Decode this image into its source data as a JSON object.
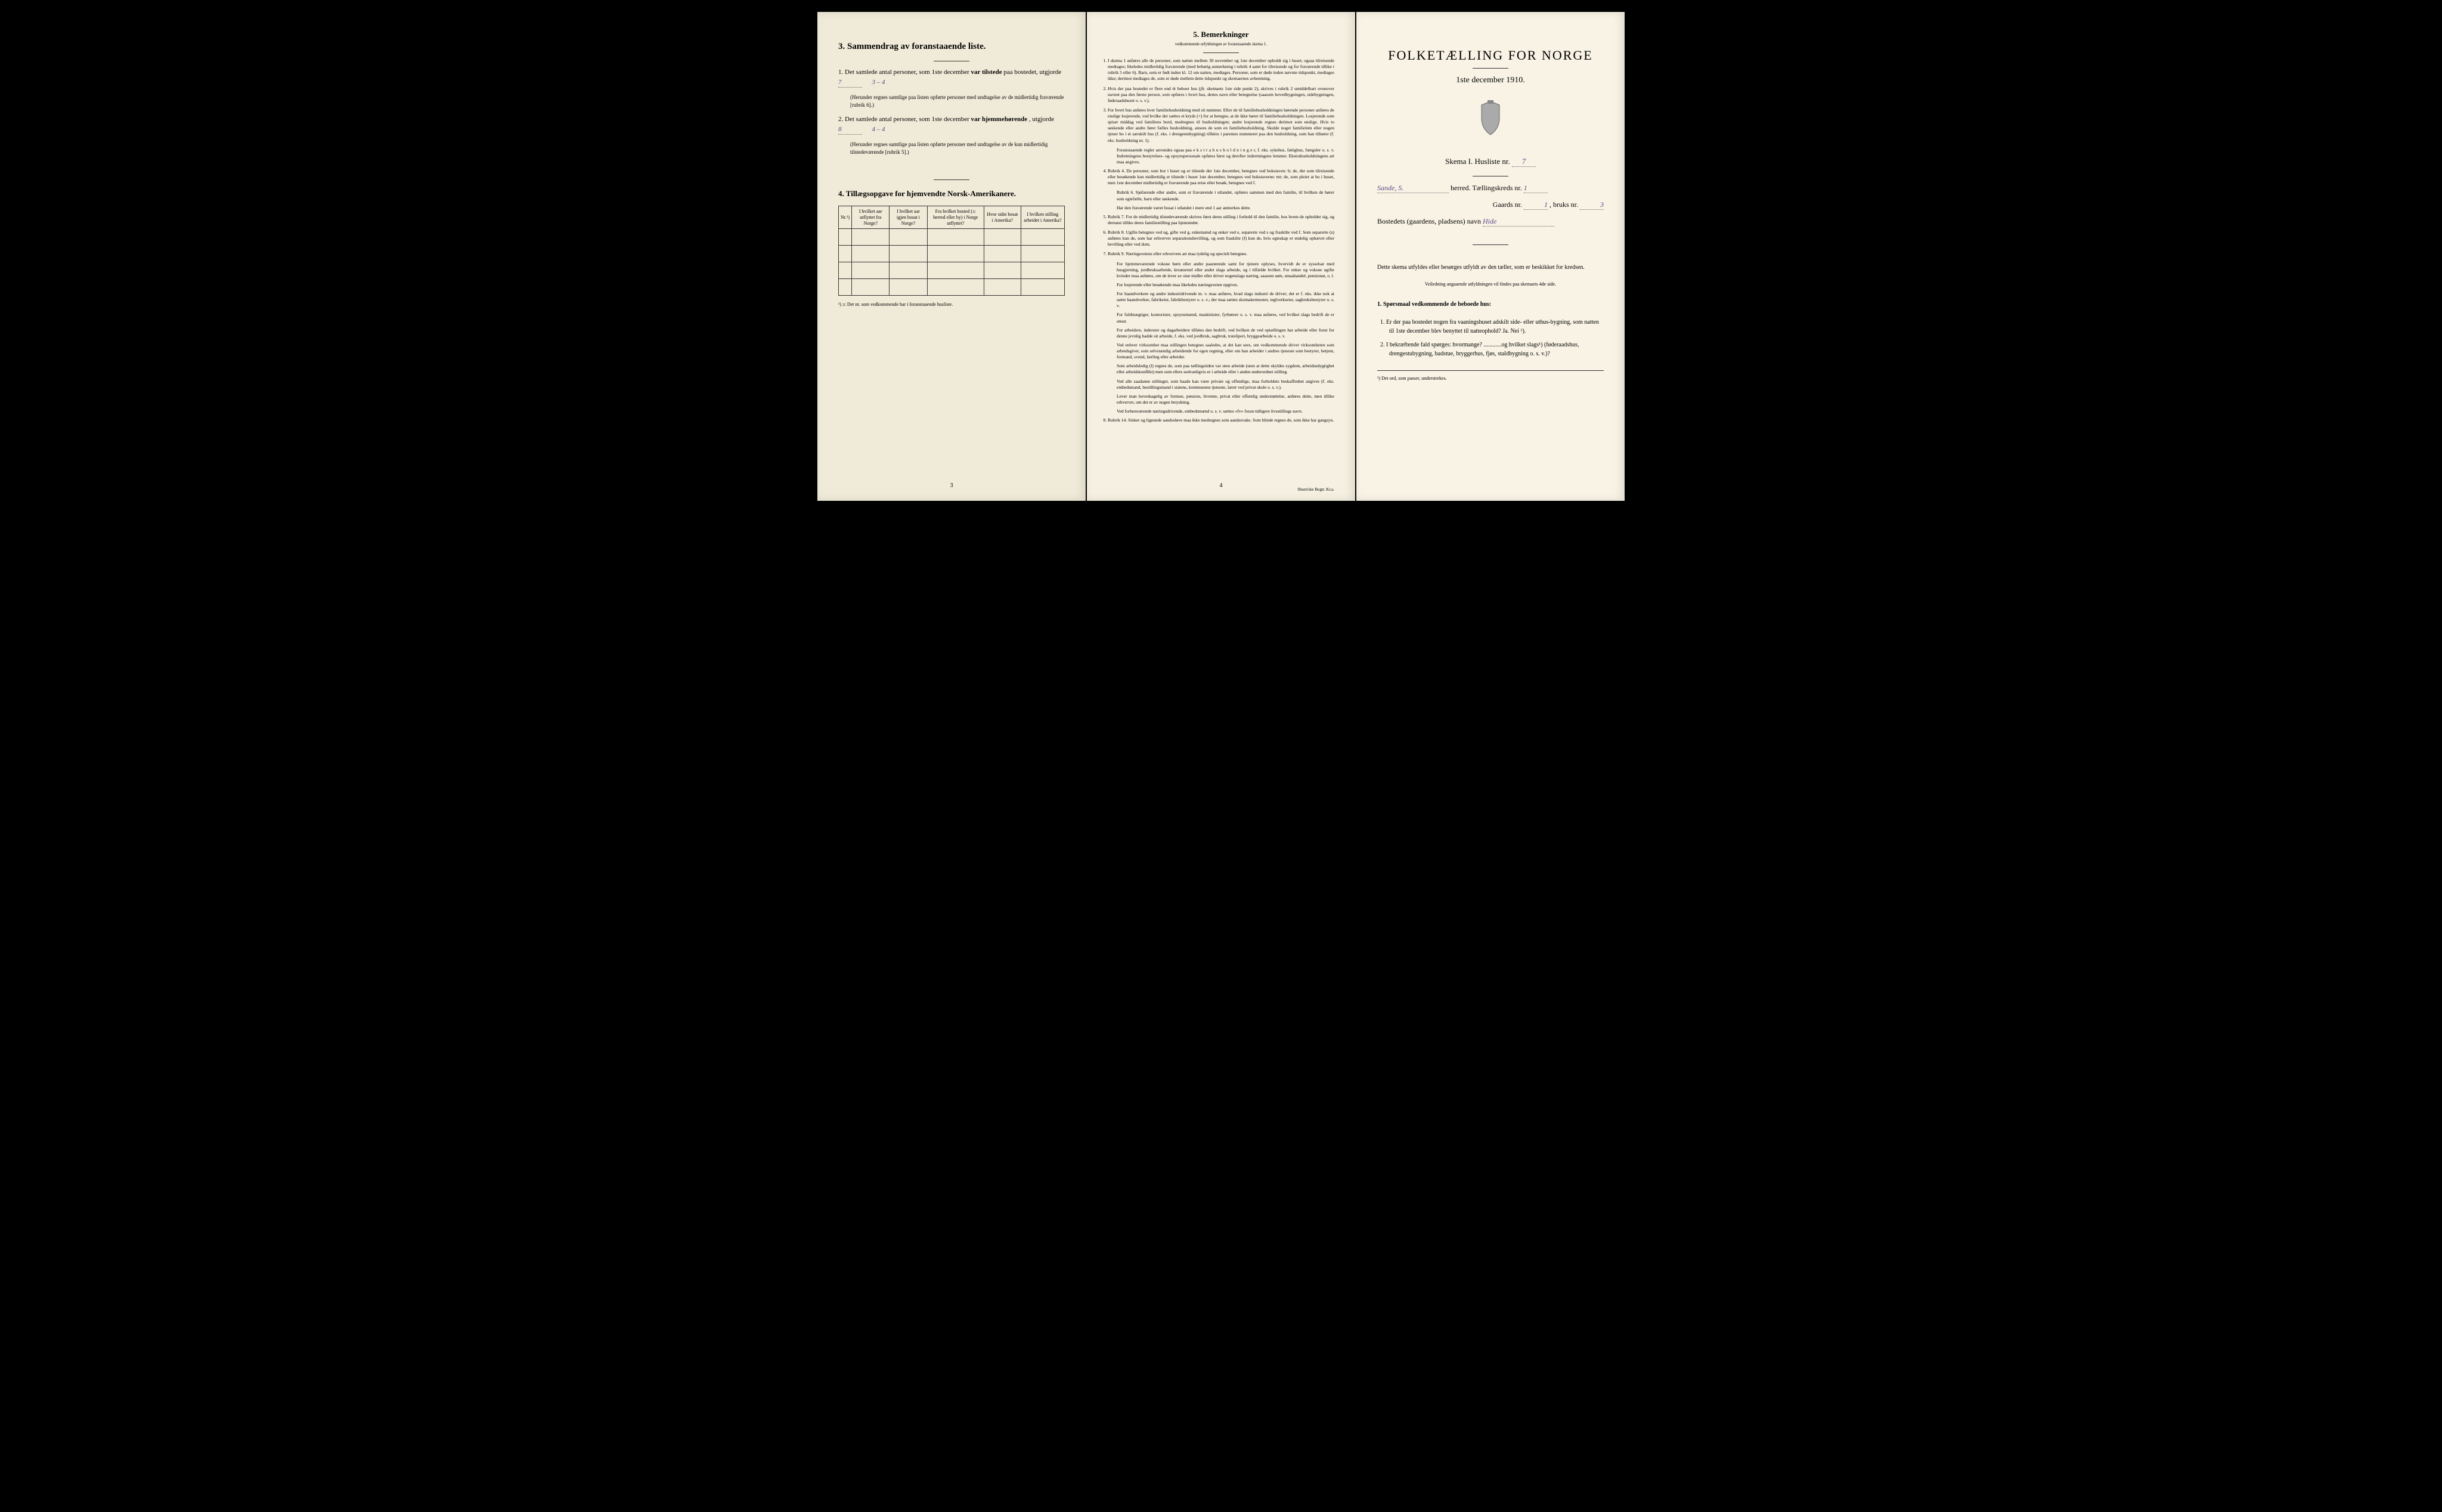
{
  "left": {
    "section3_title": "3.   Sammendrag av foranstaaende liste.",
    "item1_pre": "1.  Det samlede antal personer, som 1ste december ",
    "item1_bold": "var tilstede",
    "item1_post": " paa bostedet, utgjorde ",
    "item1_value": "7",
    "item1_handwritten": "3 – 4",
    "item1_note": "(Herunder regnes samtlige paa listen opførte personer med undtagelse av de midlertidig fraværende [rubrik 6].)",
    "item2_pre": "2.  Det samlede antal personer, som 1ste december ",
    "item2_bold": "var hjemmehørende",
    "item2_post": ", utgjorde ",
    "item2_value": "8",
    "item2_handwritten": "4 – 4",
    "item2_note": "(Herunder regnes samtlige paa listen opførte personer med undtagelse av de kun midlertidig tilstedeværende [rubrik 5].)",
    "section4_title": "4.  Tillægsopgave for hjemvendte Norsk-Amerikanere.",
    "table": {
      "headers": [
        "Nr.¹)",
        "I hvilket aar utflyttet fra Norge?",
        "I hvilket aar igjen bosat i Norge?",
        "Fra hvilket bosted (ɔ: herred eller by) i Norge utflyttet?",
        "Hvor sidst bosat i Amerika?",
        "I hvilken stilling arbeidet i Amerika?"
      ],
      "empty_rows": 4
    },
    "footnote": "¹) ɔ: Det nr. som vedkommende har i foranstaaende husliste.",
    "page_number": "3"
  },
  "middle": {
    "section_title": "5.   Bemerkninger",
    "section_subtitle": "vedkommende utfyldningen av foranstaaende skema 1.",
    "items": [
      "I skema 1 anføres alle de personer, som natten mellem 30 november og 1ste december opholdt sig i huset; ogsaa tilreisende medtages; likeledes midlertidig fraværende (med behørig anmerkning i rubrik 4 samt for tilreisende og for fraværende tillike i rubrik 5 eller 6). Barn, som er født inden kl. 12 om natten, medtages. Personer, som er døde inden nævnte tidspunkt, medtages ikke; derimot medtages de, som er døde mellem dette tidspunkt og skemaernes avhentning.",
      "Hvis der paa bostedet er flere end ét beboet hus (jfr. skemaets 1ste side punkt 2), skrives i rubrik 2 umiddelbart ovenover navnet paa den første person, som opføres i hvert hus, dettes navn eller betegnelse (saasom hovedbygningen, sidebygningen, føderaadshuset o. s. v.).",
      "For hvert hus anføres hver familiehusholdning med sit nummer. Efter de til familiehusholdningen hørende personer anføres de enslige losjerende, ved hvilke der sættes et kryds (×) for at betegne, at de ikke hører til familiehusholdningen. Losjerende som spiser middag ved familiens bord, medregnes til husholdningen; andre losjerende regnes derimot som enslige. Hvis to søskende eller andre fører fælles husholdning, ansees de som en familiehusholdning. Skulde noget familielem eller nogen tjener bo i et særskilt hus (f. eks. i drengestubygning) tilføies i parentes nummeret paa den husholdning, som han tilhører (f. eks. husholdning nr. 1).",
      "Rubrik 4.  De personer, som bor i huset og er tilstede der 1ste december, betegnes ved bokstaven: b; de, der som tilreisende eller besøkende kun midlertidig er tilstede i huset 1ste december, betegnes ved bokstaverne: mt; de, som pleier at bo i huset, men 1ste december midlertidig er fraværende paa reise eller besøk, betegnes ved f.",
      "Rubrik 7.  For de midlertidig tilstedeværende skrives først deres stilling i forhold til den familie, hos hvem de opholder sig, og dernæst tillike deres familiestilling paa hjemstedet.",
      "Rubrik 8.  Ugifte betegnes ved ug, gifte ved g, enkemænd og enker ved e, separerte ved s og fraskilte ved f. Som separerte (s) anføres kun de, som har erhvervet separationsbevilling, og som fraskilte (f) kun de, hvis egteskap er endelig ophævet efter bevilling eller ved dom.",
      "Rubrik 9.  Næringsveiens eller erhvervets art maa tydelig og specielt betegnes.",
      "Rubrik 14.  Sinker og lignende aandssløve maa ikke medregnes som aandssvake. Som blinde regnes de, som ikke har gangsyn."
    ],
    "sub_paragraphs": [
      "Foranstaaende regler anvendes ogsaa paa e k s t r a h u s h o l d n i n g e r, f. eks. sykehus, fattighus, fængsler o. s. v. Indretningens bestyrelses- og opsynspersonale opføres først og derefter indretningens lemmer. Ekstrahusholdningens art maa angives.",
      "Rubrik 6.  Sjøfarende eller andre, som er fraværende i utlandet, opføres sammen med den familie, til hvilken de hører som egtefælle, barn eller søskende.",
      "Har den fraværende været bosat i utlandet i mere end 1 aar anmerkes dette.",
      "For hjemmeværende voksne børn eller andre paarørende samt for tjenere oplyses, hvorvidt de er sysselsat med husgjerning, jordbruksarbeide, kreaturstel eller andet slags arbeide, og i tilfælde hvilket. For enker og voksne ugifte kvinder maa anføres, om de lever av sine midler eller driver nogenslags næring, saasom søm, smaahandel, pensionat, o. l.",
      "For losjerende eller besøkende maa likeledes næringsveien opgives.",
      "For haandverkere og andre industridrivende m. v. maa anføres, hvad slags industri de driver; det er f. eks. ikke nok at sætte haandverker, fabrikeier, fabrikbestyrer o. s. v.; der maa sættes skomakermester, teglverkseier, sagbruksbestyrer o. s. v.",
      "For fuldmægtiger, kontorister, opsynsmænd, maskinister, fyrbøtere o. s. v. maa anføres, ved hvilket slags bedrift de er ansat.",
      "For arbeidere, inderster og dagarbeidere tilføies den bedrift, ved hvilken de ved optællingen har arbeide eller forut for denne jevnlig hadde sit arbeide, f. eks. ved jordbruk, sagbruk, træsliperi, bryggearbeide o. s. v.",
      "Ved enhver virksomhet maa stillingen betegnes saaledes, at det kan sees, om vedkommende driver virksomheten som arbeidsgiver, som selvstændig arbeidende for egen regning, eller om han arbeider i andres tjeneste som bestyrer, betjent, formand, svend, lærling eller arbeider.",
      "Som arbeidsledig (l) regnes de, som paa tællingstiden var uten arbeide (uten at dette skyldes sygdom, arbeidsudygtighet eller arbeidskonflikt) men som ellers sedvanligvis er i arbeide eller i anden underordnet stilling.",
      "Ved alle saadanne stillinger, som baade kan være private og offentlige, maa forholdets beskaffenhet angives (f. eks. embedsmand, bestillingsmand i statens, kommunens tjeneste, lærer ved privat skole o. s. v.).",
      "Lever man hovedsagelig av formue, pension, livrente, privat eller offentlig understøttelse, anføres dette, men tillike erhvervet, om det er av nogen betydning.",
      "Ved forhenværende næringsdrivende, embedsmænd o. s. v. sættes «fv» foran tidligere livsstillings navn."
    ],
    "page_number": "4",
    "printer": "Sbsen'ske Bogtr.  Kr.a."
  },
  "right": {
    "title": "FOLKETÆLLING FOR NORGE",
    "date": "1ste december 1910.",
    "schema_label": "Skema I.  Husliste nr.",
    "schema_value": "7",
    "herred_value": "Sande, S.",
    "herred_label": "herred.   Tællingskreds nr.",
    "kreds_value": "1",
    "gaards_label": "Gaards nr.",
    "gaards_value": "1",
    "bruks_label": ", bruks nr.",
    "bruks_value": "3",
    "bosted_label": "Bostedets (gaardens, pladsens) navn",
    "bosted_value": "Hide",
    "instructions1": "Dette skema utfyldes eller besørges utfyldt av den tæller, som er beskikket for kredsen.",
    "instructions2": "Veiledning angaaende utfyldningen vil findes paa skemaets 4de side.",
    "section1_title": "1.  Spørsmaal vedkommende de beboede hus:",
    "q1": "1.  Er der paa bostedet nogen fra vaaningshuset adskilt side- eller uthus-bygning, som natten til 1ste december blev benyttet til natteophold?   Ja.  Nei ¹).",
    "q2": "2.  I bekræftende fald spørges: hvormange? ............og hvilket slags¹) (føderaadshus, drengestubygning, badstue, bryggerhus, fjøs, staldbygning o. s. v.)?",
    "footnote": "¹) Det ord, som passer, understrekes."
  }
}
